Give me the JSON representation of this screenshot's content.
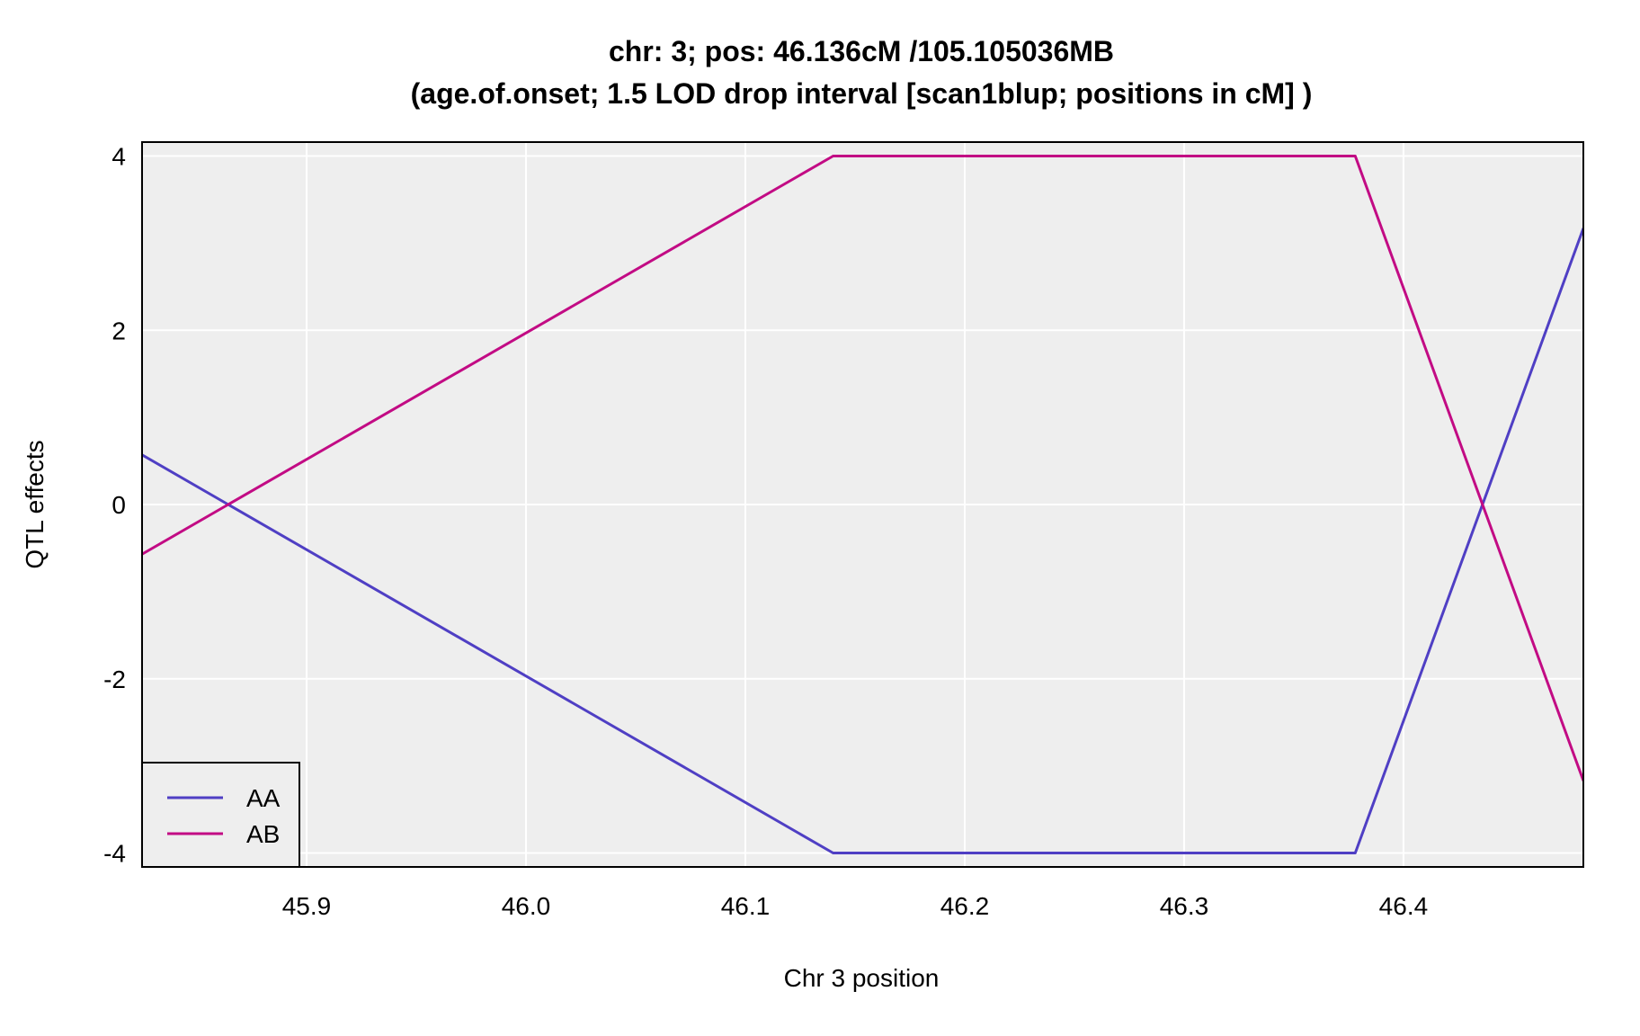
{
  "chart_data": {
    "type": "line",
    "title": "chr: 3; pos: 46.136cM /105.105036MB",
    "subtitle": "(age.of.onset; 1.5 LOD drop interval [scan1blup; positions in cM] )",
    "xlabel": "Chr 3 position",
    "ylabel": "QTL effects",
    "xlim": [
      45.825,
      46.482
    ],
    "ylim": [
      -4.16,
      4.16
    ],
    "xticks": [
      45.9,
      46.0,
      46.1,
      46.2,
      46.3,
      46.4
    ],
    "xtick_labels": [
      "45.9",
      "46.0",
      "46.1",
      "46.2",
      "46.3",
      "46.4"
    ],
    "yticks": [
      -4,
      -2,
      0,
      2,
      4
    ],
    "ytick_labels": [
      "-4",
      "-2",
      "0",
      "2",
      "4"
    ],
    "grid": true,
    "background": "#eeeeee",
    "legend_position": "bottom-left",
    "series": [
      {
        "name": "AA",
        "color": "#4f3fc4",
        "x": [
          45.825,
          46.14,
          46.378,
          46.482
        ],
        "y": [
          0.57,
          -4.0,
          -4.0,
          3.17
        ]
      },
      {
        "name": "AB",
        "color": "#c20b84",
        "x": [
          45.825,
          46.14,
          46.378,
          46.482
        ],
        "y": [
          -0.57,
          4.0,
          4.0,
          -3.17
        ]
      }
    ]
  }
}
